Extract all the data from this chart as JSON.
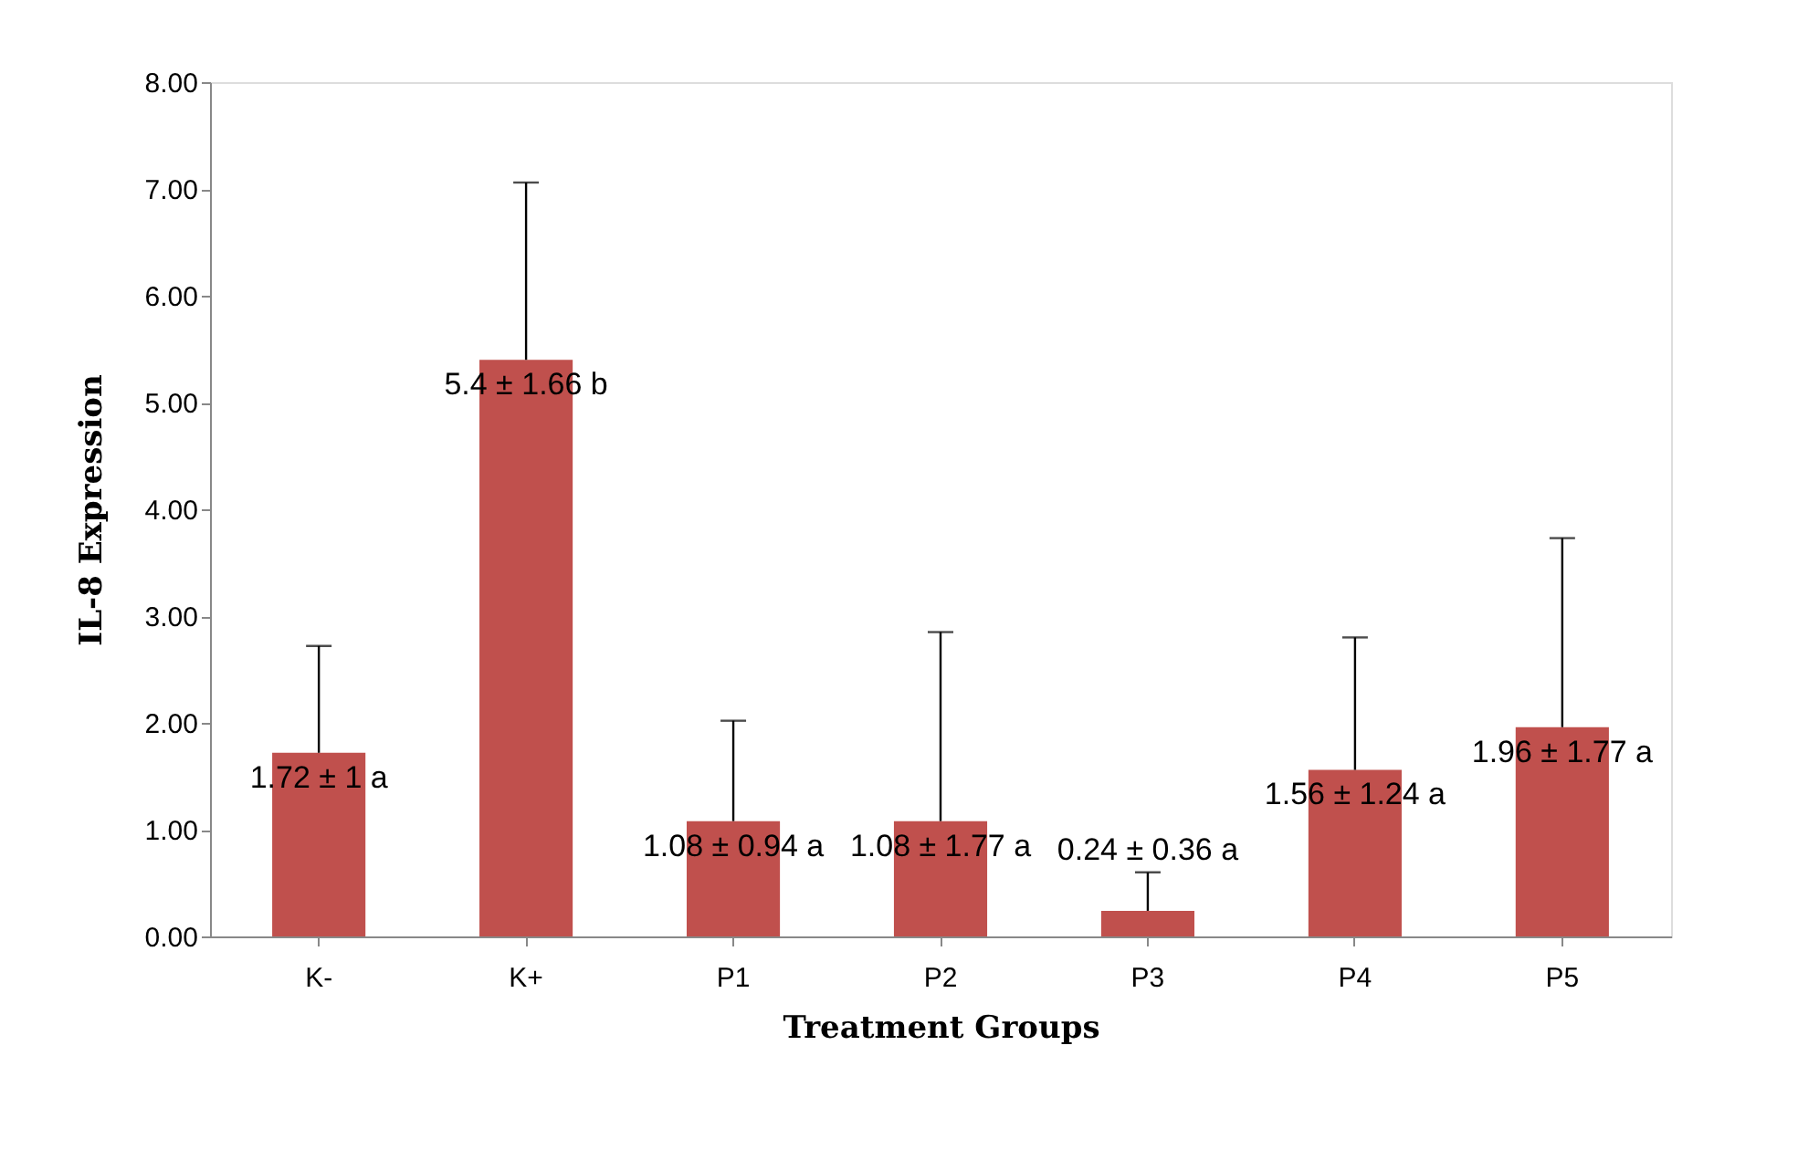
{
  "chart_data": {
    "type": "bar",
    "xlabel": "Treatment Groups",
    "ylabel": "IL-8 Expression",
    "categories": [
      "K-",
      "K+",
      "P1",
      "P2",
      "P3",
      "P4",
      "P5"
    ],
    "values": [
      1.72,
      5.4,
      1.08,
      1.08,
      0.24,
      1.56,
      1.96
    ],
    "color": "#c0504d",
    "errors": [
      [
        1.72,
        2.72
      ],
      [
        5.4,
        7.06
      ],
      [
        1.08,
        2.02
      ],
      [
        1.08,
        2.85
      ],
      [
        0.24,
        0.6
      ],
      [
        1.56,
        2.8
      ],
      [
        1.96,
        3.73
      ]
    ],
    "value_labels": [
      "1.72 ± 1 a",
      "5.4 ± 1.66 b",
      "1.08 ± 0.94 a",
      "1.08 ± 1.77 a",
      "0.24 ± 0.36 a",
      "1.56 ± 1.24 a",
      "1.96 ± 1.77 a"
    ],
    "ylim": [
      0,
      8
    ],
    "yticks": [
      {
        "value": 0,
        "label": "0.00"
      },
      {
        "value": 1,
        "label": "1.00"
      },
      {
        "value": 2,
        "label": "2.00"
      },
      {
        "value": 3,
        "label": "3.00"
      },
      {
        "value": 4,
        "label": "4.00"
      },
      {
        "value": 5,
        "label": "5.00"
      },
      {
        "value": 6,
        "label": "6.00"
      },
      {
        "value": 7,
        "label": "7.00"
      },
      {
        "value": 8,
        "label": "8.00"
      }
    ],
    "grid": false
  }
}
